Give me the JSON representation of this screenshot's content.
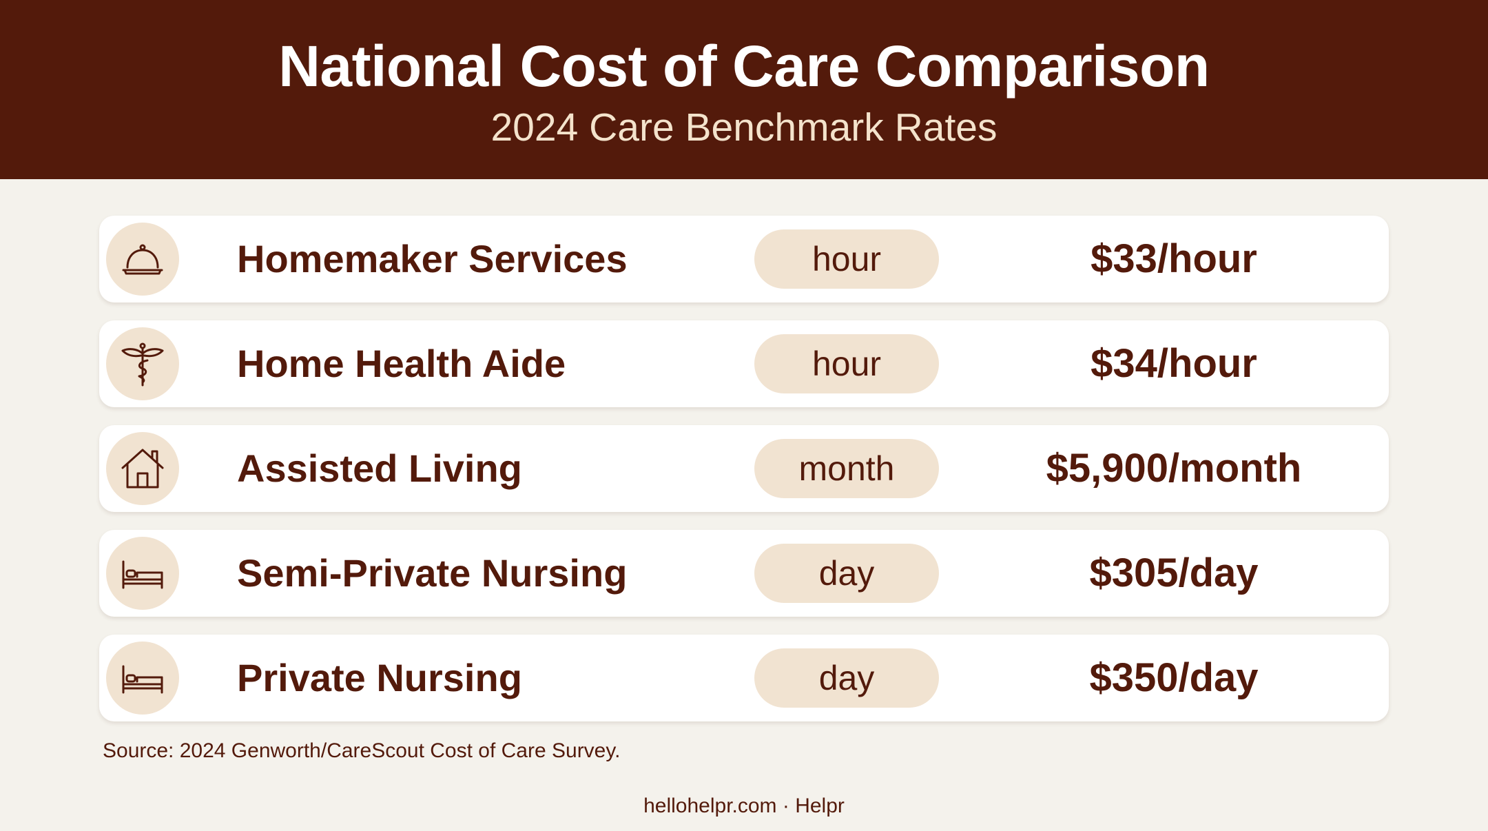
{
  "header": {
    "title": "National Cost of Care Comparison",
    "subtitle": "2024 Care Benchmark Rates"
  },
  "rows": [
    {
      "icon": "service-bell-icon",
      "label": "Homemaker Services",
      "unit": "hour",
      "price": "$33/hour"
    },
    {
      "icon": "caduceus-icon",
      "label": "Home Health Aide",
      "unit": "hour",
      "price": "$34/hour"
    },
    {
      "icon": "house-icon",
      "label": "Assisted Living",
      "unit": "month",
      "price": "$5,900/month"
    },
    {
      "icon": "bed-icon",
      "label": "Semi-Private Nursing",
      "unit": "day",
      "price": "$305/day"
    },
    {
      "icon": "bed-icon",
      "label": "Private Nursing",
      "unit": "day",
      "price": "$350/day"
    }
  ],
  "source": "Source: 2024 Genworth/CareScout Cost of Care Survey.",
  "footer": "hellohelpr.com · Helpr",
  "colors": {
    "header_background": "#531a0b",
    "accent_text": "#531a0b",
    "pill_background": "#f1e3d1",
    "page_background": "#f4f2ec"
  }
}
